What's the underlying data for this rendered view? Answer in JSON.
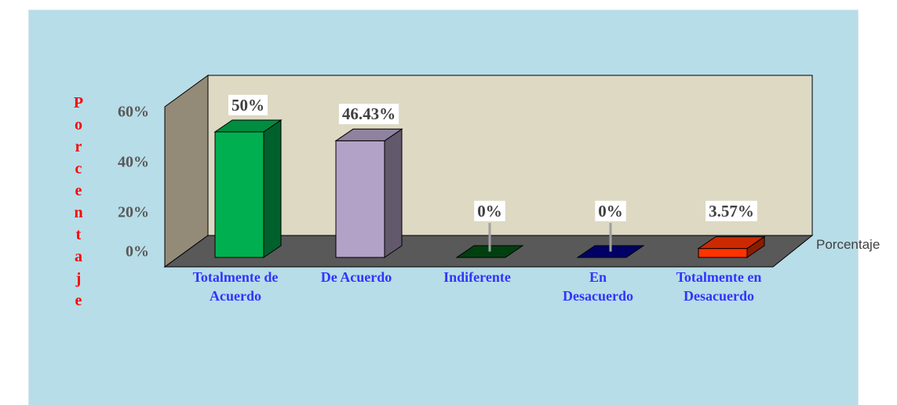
{
  "chart_data": {
    "type": "bar3d",
    "y_label": "Porcentaje",
    "categories": [
      "Totalmente de Acuerdo",
      "De Acuerdo",
      "Indiferente",
      "En Desacuerdo",
      "Totalmente en Desacuerdo"
    ],
    "series": [
      {
        "name": "Porcentaje",
        "colors": [
          "#00b050",
          "#b3a2c7",
          "#004010",
          "#000066",
          "#ff3300"
        ],
        "values": [
          50,
          46.43,
          0,
          0,
          3.57
        ],
        "value_labels": [
          "50%",
          "46.43%",
          "0%",
          "0%",
          "3.57%"
        ]
      }
    ],
    "ylim": [
      0,
      60
    ],
    "yticks": [
      {
        "value": 0,
        "label": "0%"
      },
      {
        "value": 20,
        "label": "20%"
      },
      {
        "value": 40,
        "label": "40%"
      },
      {
        "value": 60,
        "label": "60%"
      }
    ],
    "grid": false,
    "legend": "right"
  }
}
